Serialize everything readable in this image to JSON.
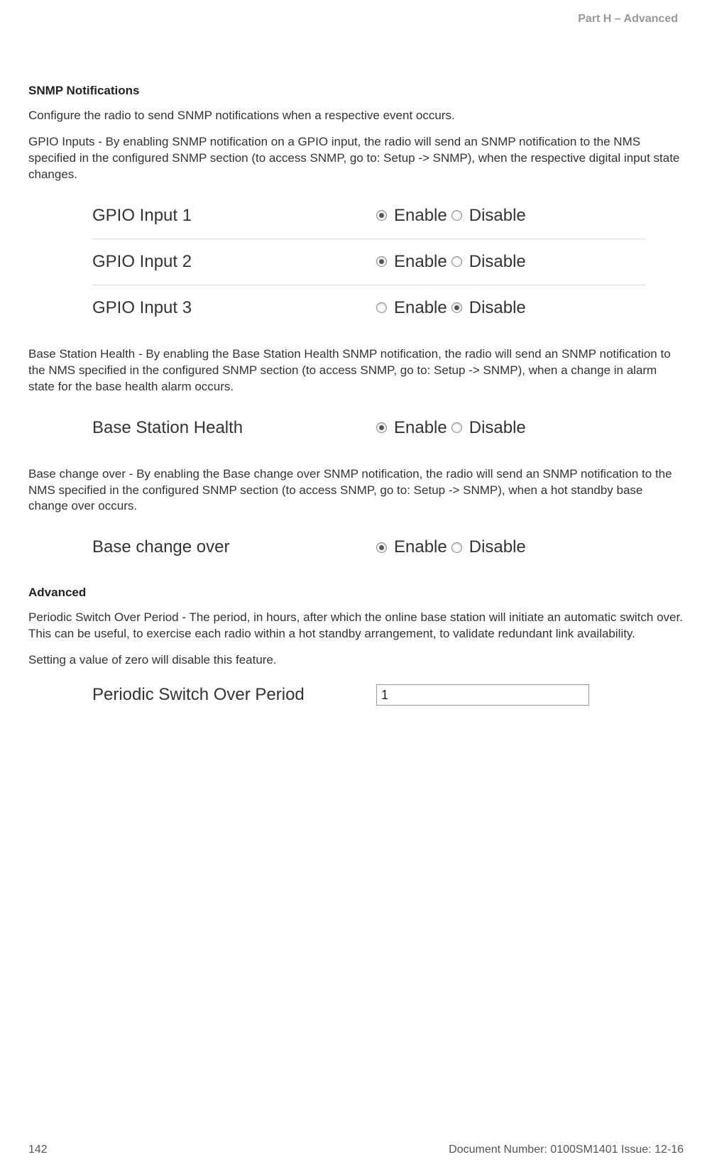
{
  "header": {
    "part_label": "Part H – Advanced"
  },
  "snmp": {
    "title": "SNMP Notifications",
    "intro": "Configure the radio to send SNMP notifications when a respective event occurs.",
    "gpio_para": "GPIO Inputs - By enabling SNMP notification on a GPIO input, the radio will send an SNMP notification to the NMS specified in the configured SNMP section (to access SNMP, go to: Setup -> SNMP), when the respective digital input state changes.",
    "gpio_rows": [
      {
        "label": "GPIO Input 1",
        "enable_checked": true,
        "disable_checked": false
      },
      {
        "label": "GPIO Input 2",
        "enable_checked": true,
        "disable_checked": false
      },
      {
        "label": "GPIO Input 3",
        "enable_checked": false,
        "disable_checked": true
      }
    ],
    "option_enable": "Enable",
    "option_disable": "Disable",
    "bsh_para": "Base Station Health - By enabling the Base Station Health SNMP notification, the radio will send an SNMP notification to the NMS specified in the configured SNMP section (to access SNMP, go to: Setup -> SNMP), when a change in alarm state for the base health alarm occurs.",
    "bsh_row": {
      "label": "Base Station Health",
      "enable_checked": true,
      "disable_checked": false
    },
    "bco_para": "Base change over - By enabling the Base change over SNMP notification, the radio will send an SNMP notification to the NMS specified in the configured SNMP section (to access SNMP, go to: Setup -> SNMP), when a hot standby base change over occurs.",
    "bco_row": {
      "label": "Base change over",
      "enable_checked": true,
      "disable_checked": false
    }
  },
  "advanced": {
    "title": "Advanced",
    "para1": "Periodic Switch Over Period - The period, in hours, after which the online base station will initiate an automatic switch over. This can be useful, to exercise each radio within a hot standby arrangement, to validate redundant link availability.",
    "para2": "Setting a value of zero will disable this feature.",
    "input_label": "Periodic Switch Over Period",
    "input_value": "1"
  },
  "footer": {
    "page_number": "142",
    "doc_info": "Document Number: 0100SM1401   Issue: 12-16"
  }
}
